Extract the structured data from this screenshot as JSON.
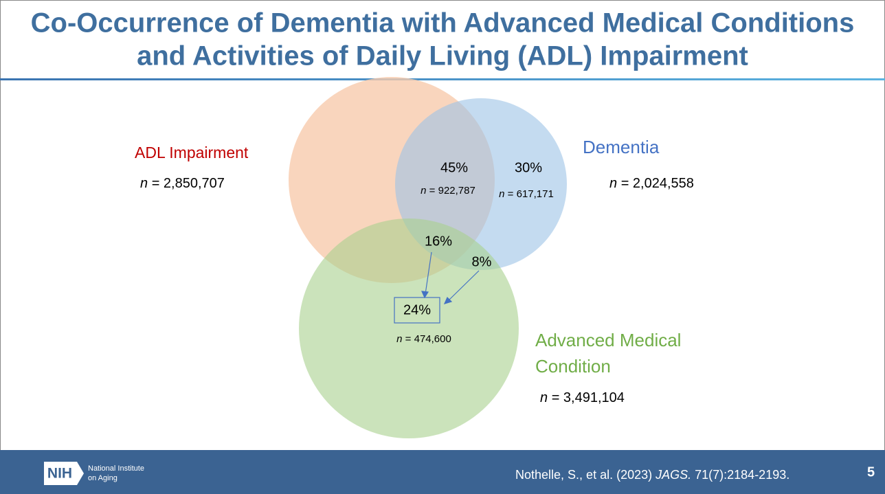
{
  "title": {
    "lines": [
      "Co-Occurrence of Dementia with Advanced Medical Conditions",
      "and Activities of Daily Living (ADL) Impairment"
    ]
  },
  "sets": [
    {
      "label": [
        "ADL Impairment"
      ],
      "count": {
        "var": "n",
        "text": "= 2,850,707"
      }
    },
    {
      "label": [
        "Dementia"
      ],
      "count": {
        "var": "n",
        "text": "= 2,024,558"
      }
    },
    {
      "label": [
        "Advanced Medical",
        "Condition"
      ],
      "count": {
        "var": "n",
        "text": "= 3,491,104"
      }
    }
  ],
  "regions": [
    {
      "percent": "45%",
      "count": {
        "var": "n",
        "text": "= 922,787"
      }
    },
    {
      "percent": "30%",
      "count": {
        "var": "n",
        "text": "= 617,171"
      }
    },
    {
      "percent": "16%"
    },
    {
      "percent": "8%"
    },
    {
      "percent": "24%",
      "count": {
        "var": "n",
        "text": "= 474,600"
      }
    }
  ],
  "footer": {
    "logo": "NIH",
    "institute": [
      "National Institute",
      "on Aging"
    ],
    "citation": {
      "authors": "Nothelle, S., et al. (2023) ",
      "journal": "JAGS.",
      "rest": " 71(7):2184-2193."
    },
    "page": "5"
  }
}
